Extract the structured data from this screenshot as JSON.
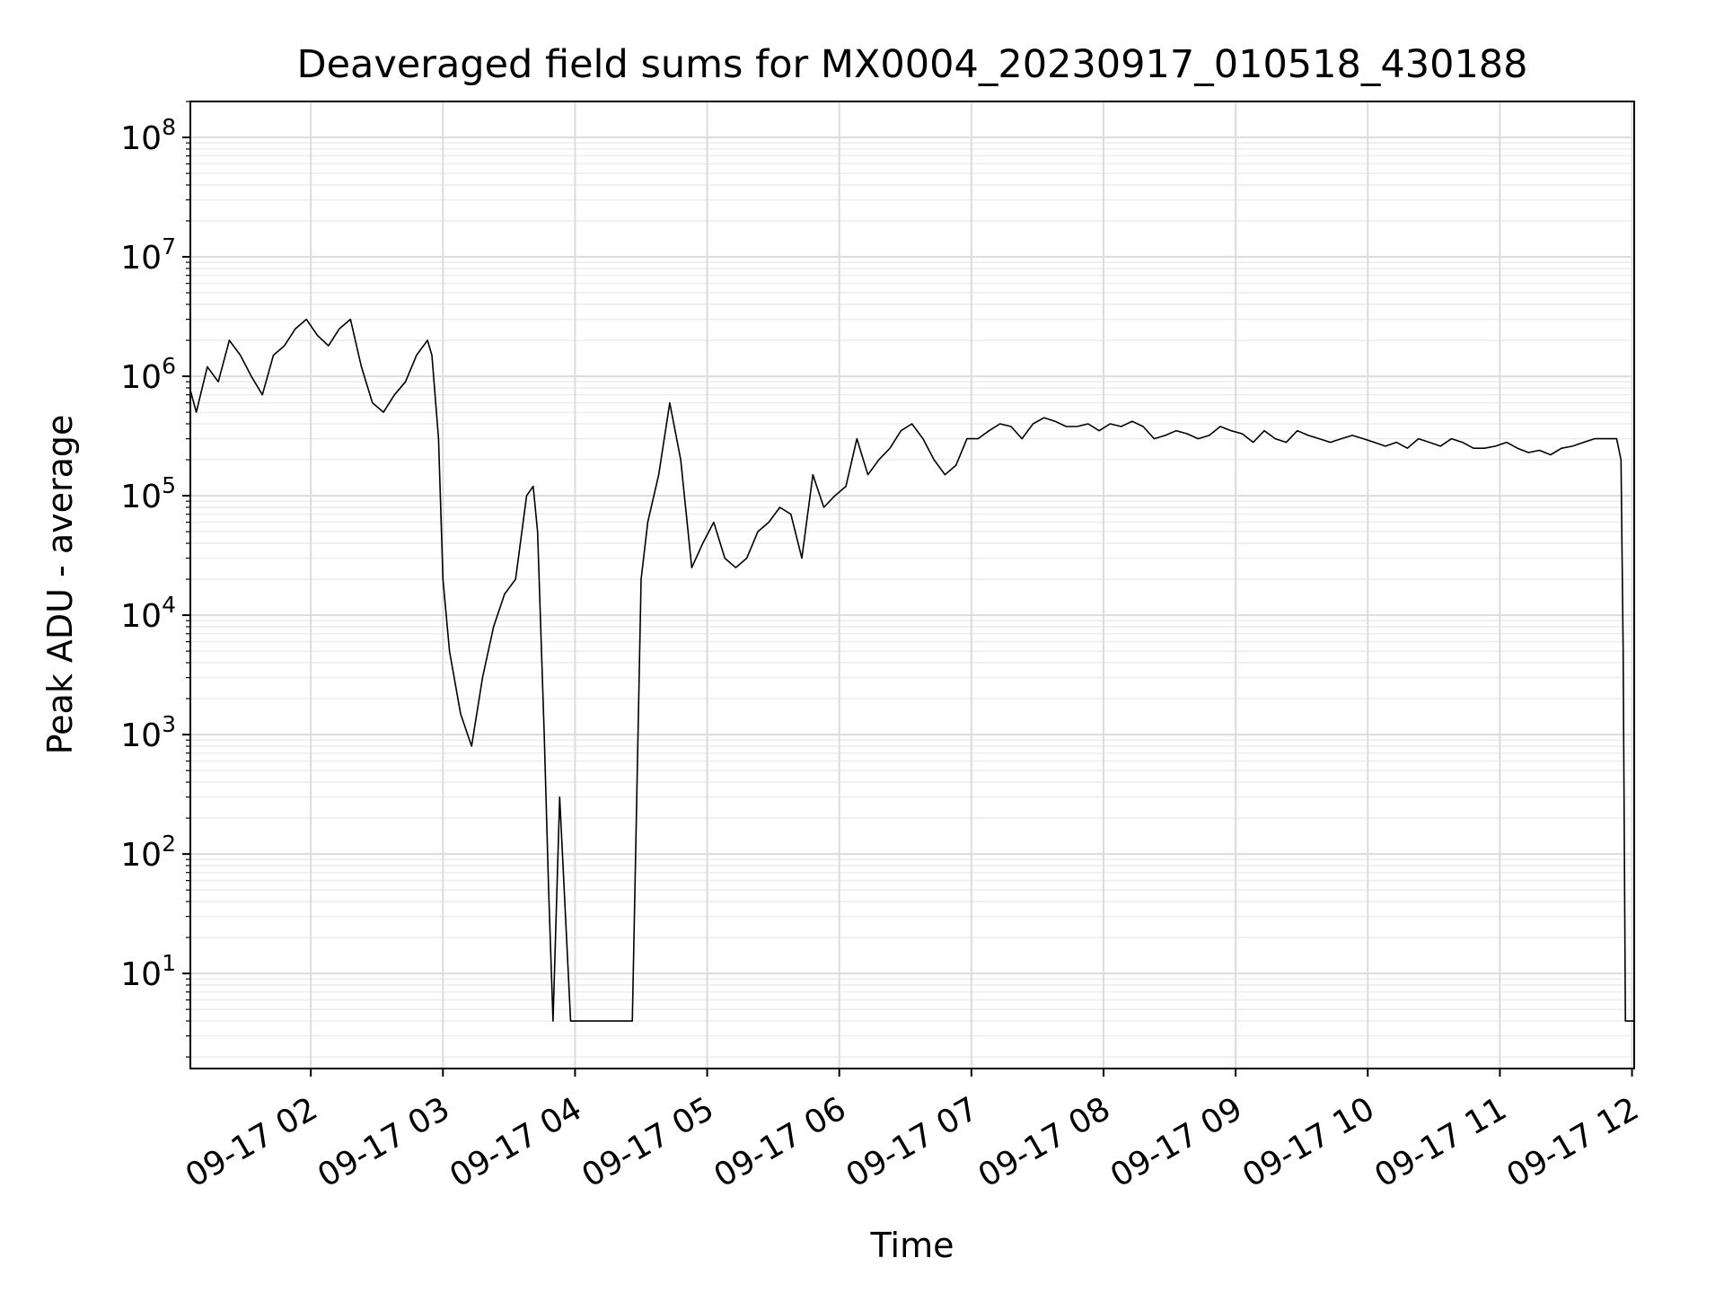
{
  "chart_data": {
    "type": "line",
    "title": "Deaveraged field sums for MX0004_20230917_010518_430188",
    "xlabel": "Time",
    "ylabel": "Peak ADU - average",
    "yscale": "log",
    "ylim": [
      1.6,
      200000000
    ],
    "xlim": [
      "2023-09-17 01:05:18",
      "2023-09-17 12:01:00"
    ],
    "grid": "both major and minor",
    "line_color": "#000000",
    "y_tick_labels": [
      {
        "base": "10",
        "exp": "1",
        "value": 10
      },
      {
        "base": "10",
        "exp": "2",
        "value": 100
      },
      {
        "base": "10",
        "exp": "3",
        "value": 1000
      },
      {
        "base": "10",
        "exp": "4",
        "value": 10000
      },
      {
        "base": "10",
        "exp": "5",
        "value": 100000
      },
      {
        "base": "10",
        "exp": "6",
        "value": 1000000
      },
      {
        "base": "10",
        "exp": "7",
        "value": 10000000
      },
      {
        "base": "10",
        "exp": "8",
        "value": 100000000
      }
    ],
    "x_tick_labels": [
      {
        "label": "09-17 02",
        "time": "2023-09-17 02:00"
      },
      {
        "label": "09-17 03",
        "time": "2023-09-17 03:00"
      },
      {
        "label": "09-17 04",
        "time": "2023-09-17 04:00"
      },
      {
        "label": "09-17 05",
        "time": "2023-09-17 05:00"
      },
      {
        "label": "09-17 06",
        "time": "2023-09-17 06:00"
      },
      {
        "label": "09-17 07",
        "time": "2023-09-17 07:00"
      },
      {
        "label": "09-17 08",
        "time": "2023-09-17 08:00"
      },
      {
        "label": "09-17 09",
        "time": "2023-09-17 09:00"
      },
      {
        "label": "09-17 10",
        "time": "2023-09-17 10:00"
      },
      {
        "label": "09-17 11",
        "time": "2023-09-17 11:00"
      },
      {
        "label": "09-17 12",
        "time": "2023-09-17 12:00"
      }
    ],
    "series": [
      {
        "x": [
          "01:05",
          "01:08",
          "01:13",
          "01:18",
          "01:23",
          "01:28",
          "01:33",
          "01:38",
          "01:43",
          "01:48",
          "01:53",
          "01:58",
          "02:03",
          "02:08",
          "02:13",
          "02:18",
          "02:23",
          "02:28",
          "02:33",
          "02:38",
          "02:43",
          "02:48",
          "02:53",
          "02:55",
          "02:58",
          "03:00",
          "03:03",
          "03:08",
          "03:13",
          "03:18",
          "03:23",
          "03:28",
          "03:33",
          "03:38",
          "03:41",
          "03:43",
          "03:46",
          "03:48",
          "03:50",
          "03:53",
          "03:58",
          "04:03",
          "04:08",
          "04:13",
          "04:18",
          "04:23",
          "04:26",
          "04:30",
          "04:33",
          "04:38",
          "04:43",
          "04:48",
          "04:53",
          "04:58",
          "05:03",
          "05:08",
          "05:13",
          "05:18",
          "05:23",
          "05:28",
          "05:33",
          "05:38",
          "05:43",
          "05:48",
          "05:53",
          "05:58",
          "06:03",
          "06:08",
          "06:13",
          "06:18",
          "06:23",
          "06:28",
          "06:33",
          "06:38",
          "06:43",
          "06:48",
          "06:53",
          "06:58",
          "07:03",
          "07:08",
          "07:13",
          "07:18",
          "07:23",
          "07:28",
          "07:33",
          "07:38",
          "07:43",
          "07:48",
          "07:53",
          "07:58",
          "08:03",
          "08:08",
          "08:13",
          "08:18",
          "08:23",
          "08:28",
          "08:33",
          "08:38",
          "08:43",
          "08:48",
          "08:53",
          "08:58",
          "09:03",
          "09:08",
          "09:13",
          "09:18",
          "09:23",
          "09:28",
          "09:33",
          "09:38",
          "09:43",
          "09:48",
          "09:53",
          "09:58",
          "10:03",
          "10:08",
          "10:13",
          "10:18",
          "10:23",
          "10:28",
          "10:33",
          "10:38",
          "10:43",
          "10:48",
          "10:53",
          "10:58",
          "11:03",
          "11:08",
          "11:13",
          "11:18",
          "11:23",
          "11:28",
          "11:33",
          "11:38",
          "11:43",
          "11:48",
          "11:53",
          "11:55",
          "11:56",
          "11:57",
          "12:01"
        ],
        "y": [
          800000,
          500000,
          1200000,
          900000,
          2000000,
          1500000,
          1000000,
          700000,
          1500000,
          1800000,
          2500000,
          3000000,
          2200000,
          1800000,
          2500000,
          3000000,
          1200000,
          600000,
          500000,
          700000,
          900000,
          1500000,
          2000000,
          1500000,
          300000,
          20000,
          5000,
          1500,
          800,
          3000,
          8000,
          15000,
          20000,
          100000,
          120000,
          50000,
          1000,
          50,
          4,
          300,
          4,
          4,
          4,
          4,
          4,
          4,
          4,
          20000,
          60000,
          150000,
          600000,
          200000,
          25000,
          40000,
          60000,
          30000,
          25000,
          30000,
          50000,
          60000,
          80000,
          70000,
          30000,
          150000,
          80000,
          100000,
          120000,
          300000,
          150000,
          200000,
          250000,
          350000,
          400000,
          300000,
          200000,
          150000,
          180000,
          300000,
          300000,
          350000,
          400000,
          380000,
          300000,
          400000,
          450000,
          420000,
          380000,
          380000,
          400000,
          350000,
          400000,
          380000,
          420000,
          380000,
          300000,
          320000,
          350000,
          330000,
          300000,
          320000,
          380000,
          350000,
          330000,
          280000,
          350000,
          300000,
          280000,
          350000,
          320000,
          300000,
          280000,
          300000,
          320000,
          300000,
          280000,
          260000,
          280000,
          250000,
          300000,
          280000,
          260000,
          300000,
          280000,
          250000,
          250000,
          260000,
          280000,
          250000,
          230000,
          240000,
          220000,
          250000,
          260000,
          280000,
          300000,
          300000,
          300000,
          200000,
          5000,
          4,
          4
        ]
      }
    ]
  }
}
